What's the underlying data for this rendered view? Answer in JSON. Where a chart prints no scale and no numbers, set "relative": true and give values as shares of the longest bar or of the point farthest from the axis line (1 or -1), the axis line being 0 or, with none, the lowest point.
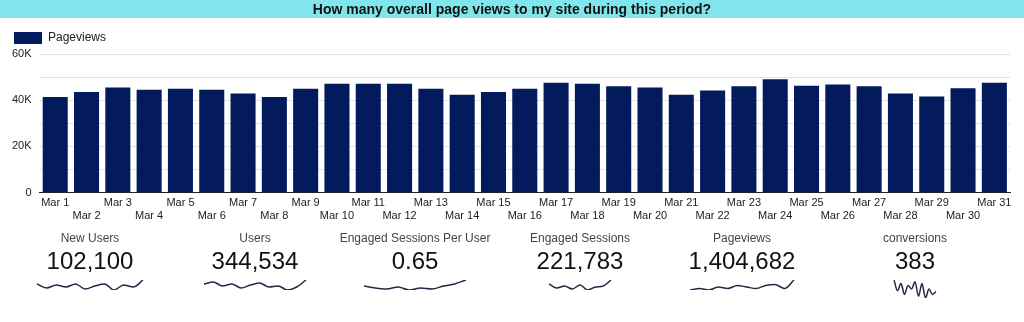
{
  "chart_data": [
    {
      "type": "bar",
      "title": "How many overall page views to my site during this period?",
      "categories": [
        "Mar 1",
        "Mar 2",
        "Mar 3",
        "Mar 4",
        "Mar 5",
        "Mar 6",
        "Mar 7",
        "Mar 8",
        "Mar 9",
        "Mar 10",
        "Mar 11",
        "Mar 12",
        "Mar 13",
        "Mar 14",
        "Mar 15",
        "Mar 16",
        "Mar 17",
        "Mar 18",
        "Mar 19",
        "Mar 20",
        "Mar 21",
        "Mar 22",
        "Mar 23",
        "Mar 24",
        "Mar 25",
        "Mar 26",
        "Mar 27",
        "Mar 28",
        "Mar 29",
        "Mar 30",
        "Mar 31"
      ],
      "series": [
        {
          "name": "Pageviews",
          "color": "#031a5c",
          "values": [
            41400,
            43500,
            45500,
            44500,
            45000,
            44500,
            42900,
            41400,
            45000,
            47100,
            47100,
            47100,
            45000,
            42400,
            43500,
            45000,
            47600,
            47100,
            46000,
            45500,
            42400,
            44200,
            46000,
            49100,
            46300,
            46800,
            46000,
            42900,
            41600,
            45200,
            47600
          ]
        }
      ],
      "ylim": [
        0,
        60000
      ],
      "yticks": [
        0,
        {
          "value": 10000,
          "label": null
        },
        {
          "value": 20000,
          "label": "20K"
        },
        {
          "value": 30000,
          "label": null
        },
        {
          "value": 40000,
          "label": "40K"
        },
        {
          "value": 50000,
          "label": null
        },
        {
          "value": 60000,
          "label": "60K"
        }
      ],
      "grid": "y",
      "legend": "top left"
    },
    {
      "type": "line",
      "relative": true,
      "title": "New Users",
      "annotations": [
        "102,100"
      ],
      "categories": [
        null,
        null,
        null,
        null,
        null,
        null,
        null,
        null,
        null,
        null,
        null,
        null
      ],
      "series": [
        {
          "color": "#2a2448",
          "values": [
            0.6,
            0.2,
            0.5,
            0.3,
            0.6,
            0.1,
            0.4,
            0.6,
            0,
            0.5,
            0.3,
            1
          ]
        }
      ]
    },
    {
      "type": "line",
      "relative": true,
      "title": "Users",
      "annotations": [
        "344,534"
      ],
      "categories": [
        null,
        null,
        null,
        null,
        null,
        null,
        null,
        null,
        null,
        null,
        null,
        null
      ],
      "series": [
        {
          "color": "#2a2448",
          "values": [
            0.6,
            0.8,
            0.4,
            0.6,
            0.2,
            0.5,
            0.7,
            0.3,
            0.4,
            0,
            0.3,
            1
          ]
        }
      ]
    },
    {
      "type": "line",
      "relative": true,
      "title": "Engaged Sessions Per User",
      "annotations": [
        "0.65"
      ],
      "categories": [
        null,
        null,
        null,
        null,
        null,
        null,
        null,
        null,
        null,
        null
      ],
      "series": [
        {
          "color": "#2a2448",
          "values": [
            0.4,
            0.2,
            0.1,
            0.3,
            0,
            0.2,
            0.1,
            0.4,
            0.6,
            1
          ]
        }
      ]
    },
    {
      "type": "line",
      "relative": true,
      "title": "Engaged Sessions",
      "annotations": [
        "221,783"
      ],
      "categories": [
        null,
        null,
        null,
        null,
        null,
        null,
        null,
        null,
        null
      ],
      "series": [
        {
          "color": "#2a2448",
          "values": [
            0.6,
            0.2,
            0.4,
            0.1,
            0.5,
            0,
            0.3,
            0.4,
            1
          ]
        }
      ]
    },
    {
      "type": "line",
      "relative": true,
      "title": "Pageviews",
      "annotations": [
        "1,404,682"
      ],
      "categories": [
        null,
        null,
        null,
        null,
        null,
        null,
        null,
        null,
        null,
        null,
        null,
        null
      ],
      "series": [
        {
          "color": "#2a2448",
          "values": [
            0,
            0.15,
            0,
            0.3,
            0.15,
            0.45,
            0.3,
            0.15,
            0.45,
            0.55,
            0.15,
            1
          ]
        }
      ]
    },
    {
      "type": "line",
      "relative": true,
      "title": "conversions",
      "annotations": [
        "383"
      ],
      "categories": [
        null,
        null,
        null,
        null,
        null,
        null,
        null,
        null,
        null,
        null,
        null,
        null,
        null
      ],
      "series": [
        {
          "color": "#2a2448",
          "values": [
            1,
            0.4,
            0.8,
            0.2,
            0.7,
            0.5,
            0.9,
            0.1,
            0.8,
            0,
            0.5,
            0.2,
            0.35
          ]
        }
      ]
    }
  ]
}
